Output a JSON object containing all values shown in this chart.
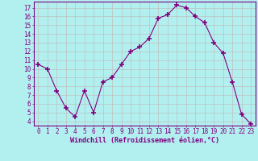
{
  "x": [
    0,
    1,
    2,
    3,
    4,
    5,
    6,
    7,
    8,
    9,
    10,
    11,
    12,
    13,
    14,
    15,
    16,
    17,
    18,
    19,
    20,
    21,
    22,
    23
  ],
  "y": [
    10.5,
    10.0,
    7.5,
    5.5,
    4.5,
    7.5,
    5.0,
    8.5,
    9.0,
    10.5,
    12.0,
    12.5,
    13.5,
    15.8,
    16.2,
    17.3,
    17.0,
    16.0,
    15.3,
    13.0,
    11.8,
    8.5,
    4.8,
    3.7
  ],
  "line_color": "#800080",
  "marker": "+",
  "marker_color": "#800080",
  "xlabel": "Windchill (Refroidissement éolien,°C)",
  "bg_color": "#b2f0f0",
  "grid_color": "#c0c0c0",
  "tick_color": "#800080",
  "xlim": [
    -0.5,
    23.5
  ],
  "ylim": [
    3.5,
    17.7
  ],
  "yticks": [
    4,
    5,
    6,
    7,
    8,
    9,
    10,
    11,
    12,
    13,
    14,
    15,
    16,
    17
  ],
  "xticks": [
    0,
    1,
    2,
    3,
    4,
    5,
    6,
    7,
    8,
    9,
    10,
    11,
    12,
    13,
    14,
    15,
    16,
    17,
    18,
    19,
    20,
    21,
    22,
    23
  ],
  "label_fontsize": 6,
  "tick_fontsize": 5.5
}
